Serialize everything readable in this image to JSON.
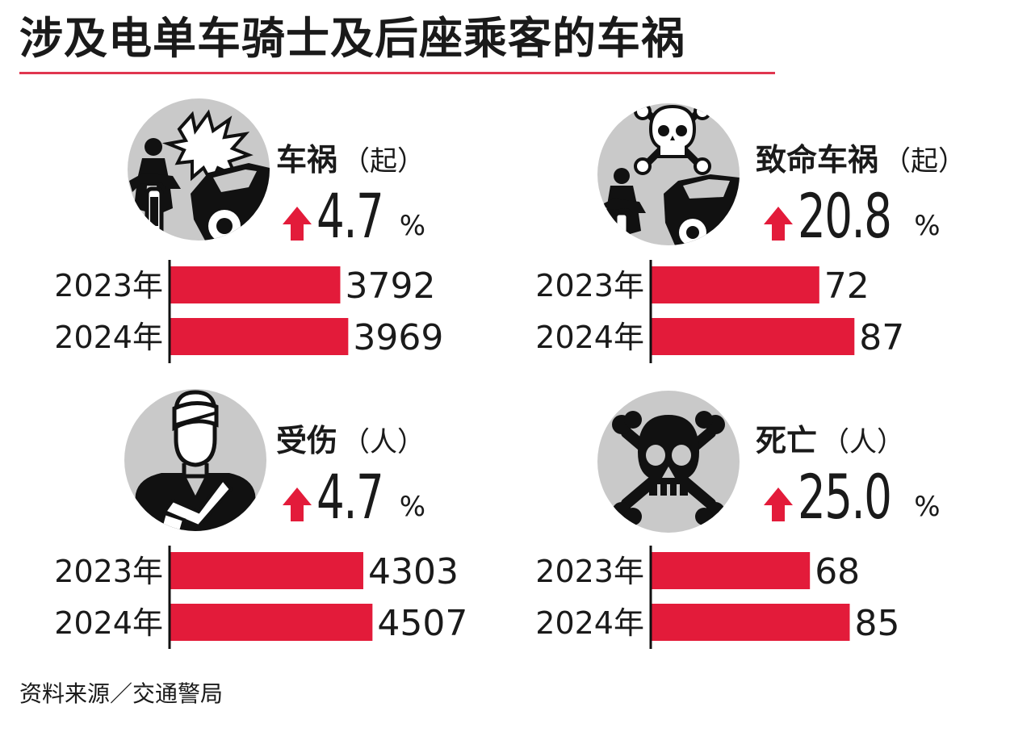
{
  "header": {
    "title": "涉及电单车骑士及后座乘客的车祸"
  },
  "source": "资料来源／交通警局",
  "colors": {
    "accent": "#e0364f",
    "bar": "#e31b3a",
    "arrow": "#e31b3a",
    "icon_bg": "#c9c9c9"
  },
  "chart_data": [
    {
      "type": "bar",
      "title": "车祸",
      "unit": "（起）",
      "change": "4.7",
      "change_suffix": "%",
      "icon": "motorcycle-crash-icon",
      "categories": [
        "2023年",
        "2024年"
      ],
      "values": [
        3792,
        3969
      ],
      "value_labels": [
        "3792",
        "3969"
      ],
      "xlim": [
        0,
        5200
      ]
    },
    {
      "type": "bar",
      "title": "致命车祸",
      "unit": "（起）",
      "change": "20.8",
      "change_suffix": "%",
      "icon": "fatal-crash-icon",
      "categories": [
        "2023年",
        "2024年"
      ],
      "values": [
        72,
        87
      ],
      "value_labels": [
        "72",
        "87"
      ],
      "xlim": [
        0,
        100
      ]
    },
    {
      "type": "bar",
      "title": "受伤",
      "unit": "（人）",
      "change": "4.7",
      "change_suffix": "%",
      "icon": "injured-person-icon",
      "categories": [
        "2023年",
        "2024年"
      ],
      "values": [
        4303,
        4507
      ],
      "value_labels": [
        "4303",
        "4507"
      ],
      "xlim": [
        0,
        5200
      ]
    },
    {
      "type": "bar",
      "title": "死亡",
      "unit": "（人）",
      "change": "25.0",
      "change_suffix": "%",
      "icon": "skull-crossbones-icon",
      "categories": [
        "2023年",
        "2024年"
      ],
      "values": [
        68,
        85
      ],
      "value_labels": [
        "68",
        "85"
      ],
      "xlim": [
        0,
        100
      ]
    }
  ]
}
